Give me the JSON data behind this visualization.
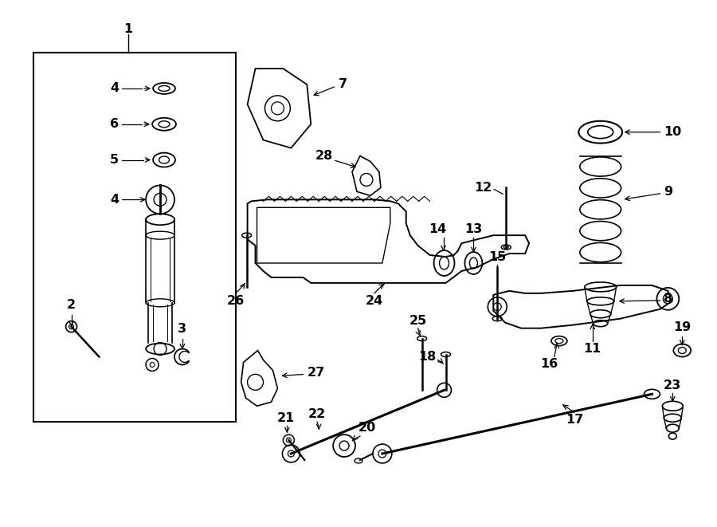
{
  "bg_color": "#ffffff",
  "lc": "#000000",
  "fs": 10.5
}
